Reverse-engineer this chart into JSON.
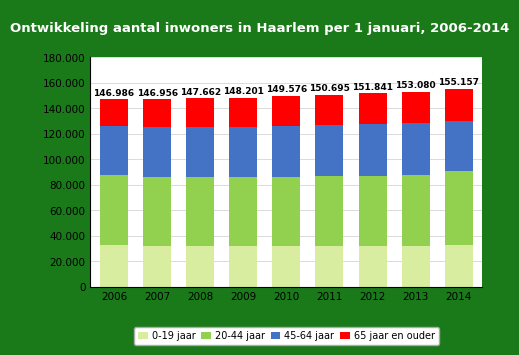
{
  "title": "Ontwikkeling aantal inwoners in Haarlem per 1 januari, 2006-2014",
  "years": [
    2006,
    2007,
    2008,
    2009,
    2010,
    2011,
    2012,
    2013,
    2014
  ],
  "totals": [
    146986,
    146956,
    147662,
    148201,
    149576,
    150695,
    151841,
    153080,
    155157
  ],
  "age_0_19": [
    32858,
    32103,
    32200,
    31900,
    31800,
    32100,
    32000,
    32200,
    33000
  ],
  "age_20_44": [
    54500,
    54200,
    54000,
    53900,
    54400,
    54600,
    55000,
    55200,
    57500
  ],
  "age_45_64": [
    38500,
    38700,
    39000,
    39700,
    40000,
    40300,
    40600,
    41000,
    39500
  ],
  "color_0_19": "#d9eda0",
  "color_20_44": "#92d050",
  "color_45_64": "#4472c4",
  "color_65plus": "#ff0000",
  "legend_labels": [
    "0-19 jaar",
    "20-44 jaar",
    "45-64 jaar",
    "65 jaar en ouder"
  ],
  "ylim": [
    0,
    180000
  ],
  "yticks": [
    0,
    20000,
    40000,
    60000,
    80000,
    100000,
    120000,
    140000,
    160000,
    180000
  ],
  "outer_bg": "#1a7a1a",
  "title_bg": "#cc0000",
  "title_color": "#ffffff",
  "plot_bg": "#ffffff",
  "title_fontsize": 9.5,
  "tick_fontsize": 7.5,
  "label_fontsize": 6.5
}
